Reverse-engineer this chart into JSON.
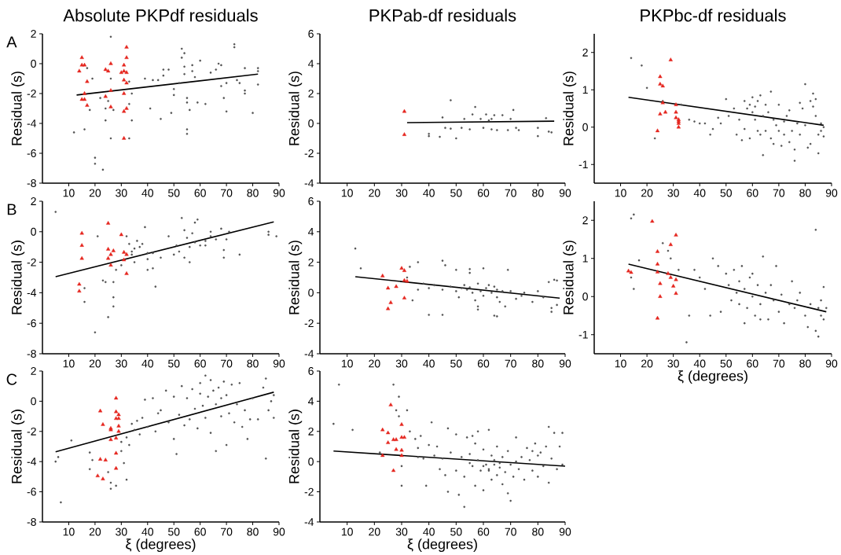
{
  "chart_data": [
    {
      "type": "scatter",
      "title": "Absolute PKPdf residuals",
      "ylabel": "Residual (s)",
      "annotations": [
        "A"
      ],
      "xlim": [
        0,
        90
      ],
      "xticks": [
        10,
        20,
        30,
        40,
        50,
        60,
        70,
        80,
        90
      ],
      "ylim": [
        -8,
        2
      ],
      "yticks": [
        -8,
        -6,
        -4,
        -2,
        0,
        2
      ],
      "series": [
        {
          "marker": "circle",
          "color": "#505050",
          "x": [
            12,
            16,
            18,
            20,
            20,
            23,
            22,
            24,
            24,
            25,
            26,
            26,
            27,
            26,
            19,
            17,
            34,
            33,
            34,
            33,
            33,
            39,
            41,
            42,
            44,
            45,
            46,
            46,
            48,
            49,
            50,
            50,
            52,
            53,
            53,
            54,
            54,
            54,
            55,
            55,
            55,
            55,
            56,
            57,
            57,
            58,
            59,
            60,
            62,
            64,
            66,
            68,
            68,
            67,
            69,
            70,
            70,
            73,
            73,
            74,
            75,
            77,
            77,
            77,
            80,
            82,
            82,
            82
          ],
          "values": [
            -4.6,
            -4.4,
            -3.1,
            -6.3,
            -6.7,
            -7.1,
            -2.3,
            -3.0,
            -3.8,
            -2.5,
            -1.0,
            -5.0,
            -3.1,
            1.8,
            -1.0,
            -0.3,
            -2.0,
            -2.7,
            -3.8,
            -5.0,
            -1.2,
            -1.0,
            -3.0,
            -1.1,
            -1.1,
            -3.7,
            -0.8,
            -0.4,
            -0.4,
            -3.3,
            -1.7,
            -2.1,
            -1.3,
            1.0,
            0.4,
            0.7,
            -0.2,
            -0.7,
            -2.3,
            -2.6,
            -4.4,
            -4.7,
            -3.1,
            -0.1,
            -0.5,
            -0.9,
            -2.6,
            0.2,
            -2.7,
            -0.6,
            -0.4,
            -1.5,
            -0.1,
            0,
            -2.3,
            -3.2,
            -1.3,
            1.3,
            1.1,
            -1.1,
            -1.3,
            -0.3,
            -1.8,
            -2.0,
            -3.3,
            -0.3,
            -1.4,
            -0.5
          ]
        },
        {
          "marker": "triangle",
          "color": "#e5261f",
          "x": [
            15,
            16,
            15,
            14,
            17,
            16,
            15,
            16,
            17,
            24,
            25,
            26,
            26,
            24,
            26,
            31,
            30,
            31,
            32,
            32,
            32,
            31,
            32,
            31,
            32,
            31,
            31
          ],
          "values": [
            0.4,
            -0.1,
            -0.1,
            -0.5,
            -1.2,
            -2.0,
            -2.4,
            -2.4,
            -2.8,
            -0.4,
            -0.5,
            0,
            -1.8,
            -2.2,
            -2.9,
            -0.1,
            -0.6,
            -0.5,
            -0.6,
            1.1,
            0.4,
            -1.1,
            -1.3,
            -2.0,
            -3.0,
            -3.2,
            -5.0
          ]
        },
        {
          "type": "line",
          "color": "#000000",
          "x": [
            13,
            82
          ],
          "values": [
            -2.1,
            -0.7
          ]
        }
      ]
    },
    {
      "type": "scatter",
      "title": "PKPab-df residuals",
      "ylabel": "Residual (s)",
      "xlim": [
        0,
        90
      ],
      "xticks": [
        10,
        20,
        30,
        40,
        50,
        60,
        70,
        80,
        90
      ],
      "ylim": [
        -4,
        6
      ],
      "yticks": [
        -4,
        -2,
        0,
        2,
        4,
        6
      ],
      "series": [
        {
          "marker": "circle",
          "color": "#505050",
          "x": [
            40,
            40,
            44,
            45,
            48,
            46,
            48,
            50,
            52,
            53,
            56,
            57,
            59,
            61,
            62,
            63,
            64,
            65,
            67,
            69,
            70,
            71,
            72,
            73,
            80,
            80,
            83,
            84,
            85,
            63,
            55,
            60
          ],
          "values": [
            -0.85,
            -0.7,
            -0.9,
            0.4,
            1.55,
            -0.3,
            -0.35,
            -1.0,
            -0.3,
            0.3,
            0.6,
            1.1,
            0.3,
            0.6,
            0.2,
            -0.4,
            0.55,
            -0.45,
            0.55,
            -0.45,
            0.3,
            0.9,
            -0.3,
            -0.45,
            -0.3,
            -0.85,
            0.35,
            -0.55,
            -0.6,
            0.3,
            -0.4,
            -0.3
          ]
        },
        {
          "marker": "triangle",
          "color": "#e5261f",
          "x": [
            31,
            31
          ],
          "values": [
            0.8,
            -0.75
          ]
        },
        {
          "type": "line",
          "color": "#000000",
          "x": [
            32,
            86
          ],
          "values": [
            0.05,
            0.15
          ]
        }
      ]
    },
    {
      "type": "scatter",
      "title": "PKPbc-df residuals",
      "ylabel": "Residual (s)",
      "xlim": [
        0,
        90
      ],
      "xticks": [
        10,
        20,
        30,
        40,
        50,
        60,
        70,
        80,
        90
      ],
      "ylim": [
        -1.5,
        2.5
      ],
      "yticks": [
        -1,
        0,
        1,
        2
      ],
      "series": [
        {
          "marker": "circle",
          "color": "#505050",
          "x": [
            14,
            18,
            20,
            23,
            26,
            33,
            36,
            38,
            40,
            42,
            45,
            47,
            50,
            51,
            53,
            54,
            55,
            56,
            57,
            58,
            59,
            60,
            60,
            61,
            61,
            62,
            62,
            63,
            63,
            64,
            64,
            65,
            66,
            67,
            67,
            68,
            68,
            69,
            70,
            70,
            71,
            72,
            72,
            73,
            74,
            74,
            75,
            76,
            76,
            77,
            78,
            78,
            79,
            80,
            80,
            81,
            82,
            82,
            83,
            83,
            84,
            84,
            85,
            85,
            86,
            86,
            87,
            87,
            57,
            59,
            65,
            48,
            44
          ],
          "values": [
            1.85,
            1.65,
            1.05,
            -0.3,
            0.7,
            0.6,
            0.2,
            0.15,
            0.1,
            0.1,
            -0.05,
            0.25,
            0.75,
            0.3,
            0.5,
            -0.2,
            0.2,
            -0.35,
            0.7,
            0.5,
            0.6,
            0.8,
            0.4,
            0.55,
            0.2,
            0.7,
            -0.1,
            -0.2,
            0.85,
            0.3,
            -0.75,
            -0.1,
            0.4,
            -0.3,
            0.95,
            0.2,
            -0.45,
            0.05,
            0.6,
            -0.1,
            -0.5,
            0.15,
            -0.2,
            0.3,
            -0.4,
            0.45,
            -0.1,
            -0.9,
            -0.6,
            0.1,
            -0.2,
            0.65,
            0.5,
            1.15,
            0.05,
            -0.55,
            0.7,
            -0.45,
            0.9,
            0.55,
            0.75,
            0.3,
            -0.2,
            -0.7,
            0.1,
            -0.1,
            0,
            -0.25,
            -0.05,
            -0.3,
            0.6,
            0.1,
            -0.2
          ]
        },
        {
          "marker": "triangle",
          "color": "#e5261f",
          "x": [
            25,
            25,
            26,
            26,
            25,
            27,
            24,
            29,
            31,
            31,
            31,
            32,
            32,
            32,
            32
          ],
          "values": [
            1.35,
            1.15,
            1.1,
            0.65,
            0.35,
            0.4,
            -0.1,
            1.8,
            0.6,
            0.4,
            0.25,
            0.2,
            0.1,
            0,
            0.15
          ]
        },
        {
          "type": "line",
          "color": "#000000",
          "x": [
            13,
            87
          ],
          "values": [
            0.8,
            0.05
          ]
        }
      ]
    },
    {
      "type": "scatter",
      "ylabel": "Residual (s)",
      "annotations": [
        "B"
      ],
      "xlim": [
        0,
        90
      ],
      "xticks": [
        10,
        20,
        30,
        40,
        50,
        60,
        70,
        80,
        90
      ],
      "ylim": [
        -8,
        2
      ],
      "yticks": [
        -8,
        -6,
        -4,
        -2,
        0,
        2
      ],
      "series": [
        {
          "marker": "circle",
          "color": "#505050",
          "x": [
            5,
            16,
            16,
            20,
            21,
            23,
            24,
            25,
            27,
            27,
            27,
            28,
            32,
            33,
            34,
            35,
            35,
            36,
            37,
            38,
            39,
            40,
            40,
            40,
            42,
            42,
            43,
            48,
            50,
            51,
            52,
            53,
            54,
            54,
            55,
            56,
            56,
            57,
            58,
            59,
            60,
            62,
            64,
            64,
            66,
            68,
            69,
            69,
            70,
            71,
            75,
            86,
            86,
            89,
            30,
            34,
            45,
            58,
            62
          ],
          "values": [
            1.3,
            -3.7,
            -4.6,
            -6.6,
            -0.3,
            -3.2,
            -3.3,
            -5.6,
            -4.3,
            -4.9,
            -3.3,
            -2.5,
            -0.3,
            -0.8,
            -1.5,
            -2.0,
            -1.1,
            -0.6,
            -1.0,
            -0.8,
            0.3,
            -1.8,
            -2.5,
            -1.4,
            -1.4,
            -2.4,
            -3.6,
            -0.3,
            -1.5,
            -0.9,
            -1.3,
            0.9,
            -1.7,
            0.1,
            -0.4,
            -1.0,
            -2.0,
            -0.1,
            0.6,
            0.8,
            -0.9,
            -0.6,
            0,
            -0.3,
            -0.5,
            0.2,
            -1.2,
            -1.7,
            -0.5,
            0,
            -1.5,
            0,
            -0.2,
            -0.3,
            -2.2,
            -1.3,
            -1.7,
            -0.7,
            -0.9
          ]
        },
        {
          "marker": "triangle",
          "color": "#e5261f",
          "x": [
            15,
            15,
            15,
            14,
            14,
            25,
            25,
            25,
            26,
            27,
            26,
            30,
            31,
            32,
            31,
            32
          ],
          "values": [
            -0.1,
            -0.9,
            -1.75,
            -3.45,
            -3.9,
            0.55,
            -1.15,
            -1.75,
            -1.5,
            -1.25,
            -2.2,
            -0.2,
            -1.35,
            -1.5,
            -1.85,
            -2.75
          ]
        },
        {
          "type": "line",
          "color": "#000000",
          "x": [
            5,
            88
          ],
          "values": [
            -2.95,
            0.65
          ]
        }
      ]
    },
    {
      "type": "scatter",
      "ylabel": "Residual (s)",
      "xlim": [
        0,
        90
      ],
      "xticks": [
        10,
        20,
        30,
        40,
        50,
        60,
        70,
        80,
        90
      ],
      "ylim": [
        -4,
        6
      ],
      "yticks": [
        -4,
        -2,
        0,
        2,
        4,
        6
      ],
      "series": [
        {
          "marker": "circle",
          "color": "#505050",
          "x": [
            13,
            15,
            36,
            45,
            46,
            40,
            45,
            50,
            55,
            55,
            60,
            69,
            84,
            86,
            85,
            85,
            64,
            65,
            58,
            58,
            68,
            36,
            38,
            40,
            42,
            45,
            48,
            50,
            51,
            52,
            53,
            54,
            55,
            56,
            57,
            58,
            59,
            60,
            61,
            62,
            63,
            64,
            65,
            65,
            66,
            67,
            70,
            72,
            74,
            75,
            78,
            80,
            82,
            87,
            87,
            33,
            32,
            34
          ],
          "values": [
            2.9,
            1.6,
            2.0,
            2.1,
            1.8,
            -1.45,
            -1.45,
            1.5,
            1.55,
            1.3,
            1.6,
            1.5,
            0.7,
            0.85,
            -1.0,
            -1.25,
            -1.5,
            -1.55,
            -0.9,
            -1.1,
            -0.9,
            0.2,
            0.6,
            0.3,
            0.5,
            0.2,
            0.4,
            0.1,
            -0.3,
            0.3,
            0.5,
            0.2,
            0.35,
            0.0,
            -0.5,
            0.6,
            0.1,
            -0.2,
            0.3,
            0.5,
            0.0,
            0.4,
            -0.3,
            0.2,
            -0.6,
            0.1,
            0.1,
            -0.4,
            -0.2,
            0.0,
            -0.6,
            0.1,
            -0.3,
            0.8,
            -0.8,
            1.7,
            1.0,
            -0.5
          ]
        },
        {
          "marker": "triangle",
          "color": "#e5261f",
          "x": [
            23,
            25,
            25,
            26,
            28,
            31,
            30,
            31,
            31,
            32
          ],
          "values": [
            1.1,
            0.3,
            -1.05,
            -0.65,
            0.4,
            -0.35,
            1.6,
            1.45,
            0.8,
            0.75
          ]
        },
        {
          "type": "line",
          "color": "#000000",
          "x": [
            13,
            88
          ],
          "values": [
            1.05,
            -0.35
          ]
        }
      ]
    },
    {
      "type": "scatter",
      "xlabel": "ξ (degrees)",
      "ylabel": "Residual (s)",
      "xlim": [
        0,
        90
      ],
      "xticks": [
        10,
        20,
        30,
        40,
        50,
        60,
        70,
        80,
        90
      ],
      "ylim": [
        -1.5,
        2.5
      ],
      "yticks": [
        -1,
        0,
        1,
        2
      ],
      "series": [
        {
          "marker": "circle",
          "color": "#505050",
          "x": [
            14,
            15,
            14,
            15,
            17,
            26,
            28,
            29,
            32,
            35,
            36,
            38,
            40,
            42,
            44,
            45,
            47,
            48,
            50,
            51,
            52,
            53,
            54,
            55,
            55,
            56,
            57,
            58,
            59,
            60,
            61,
            62,
            63,
            64,
            65,
            66,
            67,
            68,
            69,
            70,
            71,
            72,
            74,
            75,
            76,
            77,
            78,
            80,
            81,
            82,
            84,
            84,
            85,
            85,
            86,
            86,
            87,
            87,
            88,
            57,
            60,
            63
          ],
          "values": [
            2.05,
            2.15,
            0.5,
            0.2,
            0.95,
            1.4,
            1.2,
            1.0,
            0.7,
            -1.2,
            -0.5,
            0.7,
            0.5,
            0.2,
            -0.5,
            1.0,
            0.8,
            -0.4,
            0.6,
            0.3,
            -0.1,
            0.7,
            0.1,
            0.4,
            -0.2,
            0.8,
            0.2,
            -0.3,
            0.5,
            0,
            -0.5,
            0.3,
            -0.2,
            1.05,
            0.1,
            -0.6,
            0.3,
            -0.1,
            0.8,
            -0.4,
            0.05,
            -0.7,
            -0.2,
            0.4,
            -0.3,
            -0.1,
            0.1,
            -0.5,
            -0.8,
            -0.2,
            1.75,
            -0.9,
            -0.3,
            -1.05,
            -0.1,
            -0.5,
            -0.6,
            0.25,
            -0.3,
            -0.7,
            0.6,
            -0.6
          ]
        },
        {
          "marker": "triangle",
          "color": "#e5261f",
          "x": [
            13,
            14,
            22,
            24,
            24,
            24,
            25,
            25,
            24,
            28,
            29,
            31,
            31,
            30,
            31,
            29
          ],
          "values": [
            0.67,
            0.63,
            1.97,
            1.18,
            0.85,
            0.64,
            0.34,
            0,
            -0.57,
            0.6,
            1.36,
            1.61,
            0.44,
            0.27,
            0.08,
            0.5
          ]
        },
        {
          "type": "line",
          "color": "#000000",
          "x": [
            13,
            88
          ],
          "values": [
            0.85,
            -0.4
          ]
        }
      ]
    },
    {
      "type": "scatter",
      "xlabel": "ξ (degrees)",
      "ylabel": "Residual (s)",
      "annotations": [
        "C"
      ],
      "xlim": [
        0,
        90
      ],
      "xticks": [
        10,
        20,
        30,
        40,
        50,
        60,
        70,
        80,
        90
      ],
      "ylim": [
        -8,
        2
      ],
      "yticks": [
        -8,
        -6,
        -4,
        -2,
        0,
        2
      ],
      "series": [
        {
          "marker": "circle",
          "color": "#505050",
          "x": [
            5,
            6,
            7,
            11,
            18,
            18,
            19,
            25,
            26,
            26,
            28,
            30,
            30,
            31,
            32,
            32,
            33,
            34,
            35,
            36,
            37,
            39,
            40,
            42,
            43,
            44,
            47,
            48,
            50,
            50,
            51,
            52,
            53,
            54,
            55,
            56,
            57,
            58,
            59,
            60,
            60,
            61,
            62,
            62,
            63,
            64,
            64,
            65,
            66,
            66,
            67,
            68,
            68,
            69,
            70,
            70,
            71,
            72,
            73,
            74,
            75,
            76,
            77,
            78,
            79,
            80,
            82,
            84,
            85,
            85,
            86,
            87,
            88,
            88,
            45,
            38
          ],
          "values": [
            -4.0,
            -3.7,
            -6.7,
            -2.6,
            -3.4,
            -4.5,
            -3.9,
            -4.7,
            -5.4,
            -5.8,
            -5.6,
            -2.7,
            -3.3,
            -4.1,
            -5.2,
            -2.4,
            -2.9,
            -1.5,
            -1.9,
            -1.3,
            -2.2,
            0.1,
            -1.7,
            0.2,
            -2.0,
            -0.8,
            0.7,
            -1.4,
            -2.5,
            0.3,
            -3.5,
            -0.9,
            1.0,
            -1.6,
            0.2,
            -1.2,
            0.8,
            -0.5,
            -1.8,
            1.2,
            0.5,
            -0.3,
            1.7,
            -1.1,
            0.3,
            1.4,
            -2.1,
            0.7,
            -0.2,
            -3.3,
            0.9,
            -1.0,
            0.2,
            1.3,
            -2.9,
            0.4,
            -0.8,
            1.1,
            -1.4,
            -0.2,
            1.2,
            -1.7,
            -0.6,
            -2.5,
            -1.2,
            0.2,
            -1.2,
            0.9,
            1.5,
            -3.8,
            -0.6,
            0,
            -1.1,
            0.4,
            -0.6,
            -1.1
          ]
        },
        {
          "marker": "triangle",
          "color": "#e5261f",
          "x": [
            22,
            22,
            21,
            23,
            24,
            23,
            26,
            26,
            26,
            28,
            28,
            29,
            28,
            29,
            29,
            29,
            28,
            28,
            28
          ],
          "values": [
            -0.65,
            -3.85,
            -4.95,
            -1.55,
            -3.9,
            -5.15,
            -1.8,
            -1.9,
            -2.55,
            0.2,
            -0.7,
            -0.9,
            -1.15,
            -1.15,
            -1.65,
            -2,
            -2.45,
            -3.45,
            -4.45
          ]
        },
        {
          "type": "line",
          "color": "#000000",
          "x": [
            5,
            88
          ],
          "values": [
            -3.35,
            0.6
          ]
        }
      ]
    },
    {
      "type": "scatter",
      "xlabel": "ξ (degrees)",
      "ylabel": "Residual (s)",
      "xlim": [
        0,
        90
      ],
      "xticks": [
        10,
        20,
        30,
        40,
        50,
        60,
        70,
        80,
        90
      ],
      "ylim": [
        -4,
        6
      ],
      "yticks": [
        -4,
        -2,
        0,
        2,
        4,
        6
      ],
      "series": [
        {
          "marker": "circle",
          "color": "#505050",
          "x": [
            5,
            7,
            12,
            22,
            27,
            29,
            28,
            29,
            32,
            30,
            30,
            33,
            35,
            36,
            37,
            38,
            39,
            40,
            41,
            42,
            43,
            44,
            46,
            47,
            47,
            48,
            50,
            50,
            51,
            52,
            53,
            53,
            54,
            55,
            56,
            57,
            57,
            58,
            58,
            59,
            60,
            60,
            61,
            62,
            62,
            63,
            63,
            64,
            65,
            65,
            66,
            67,
            67,
            68,
            69,
            69,
            70,
            70,
            71,
            72,
            72,
            73,
            74,
            75,
            76,
            77,
            78,
            78,
            79,
            80,
            80,
            81,
            82,
            83,
            84,
            84,
            85,
            86,
            87,
            88,
            89,
            89,
            36,
            45,
            55,
            60,
            62,
            64,
            66,
            56
          ],
          "values": [
            2.5,
            5.1,
            2.1,
            0.6,
            5.1,
            4.3,
            3.4,
            3.0,
            3.4,
            -0.3,
            -1.6,
            2.0,
            1.5,
            0.9,
            1.7,
            0.2,
            -1.6,
            1.1,
            2.6,
            0.4,
            1.0,
            -0.5,
            -0.9,
            2.2,
            -2.0,
            0.6,
            1.8,
            -0.6,
            -2.2,
            0.3,
            -3.0,
            -1.0,
            1.6,
            0.5,
            -0.3,
            1.2,
            -1.6,
            2.0,
            0.1,
            -0.6,
            -1.9,
            0.8,
            -0.2,
            2.1,
            -0.5,
            -1.2,
            0.4,
            -0.2,
            -0.9,
            1.0,
            -0.4,
            -1.5,
            0.3,
            -0.7,
            -2.1,
            0.7,
            -2.6,
            -0.2,
            -1.0,
            1.6,
            0.0,
            -0.5,
            0.3,
            -1.2,
            0.9,
            0.1,
            0.7,
            -0.6,
            1.2,
            0.4,
            -1.0,
            0.6,
            -0.3,
            1.0,
            2.3,
            -1.4,
            0.2,
            1.9,
            -0.5,
            1.0,
            -0.2,
            1.9,
            0.3,
            0.2,
            -0.1,
            -0.3,
            -0.6,
            0.1,
            -0.1,
            1.7
          ]
        },
        {
          "marker": "triangle",
          "color": "#e5261f",
          "x": [
            23,
            23,
            25,
            25,
            26,
            27,
            28,
            28,
            27,
            30,
            30,
            31,
            30,
            30
          ],
          "values": [
            0.4,
            2.1,
            1.9,
            1.25,
            3.75,
            1.45,
            1.45,
            0.8,
            -0.6,
            2.45,
            1.6,
            1.6,
            0.75,
            0.4
          ]
        },
        {
          "type": "line",
          "color": "#000000",
          "x": [
            5,
            90
          ],
          "values": [
            0.7,
            -0.3
          ]
        }
      ]
    }
  ]
}
